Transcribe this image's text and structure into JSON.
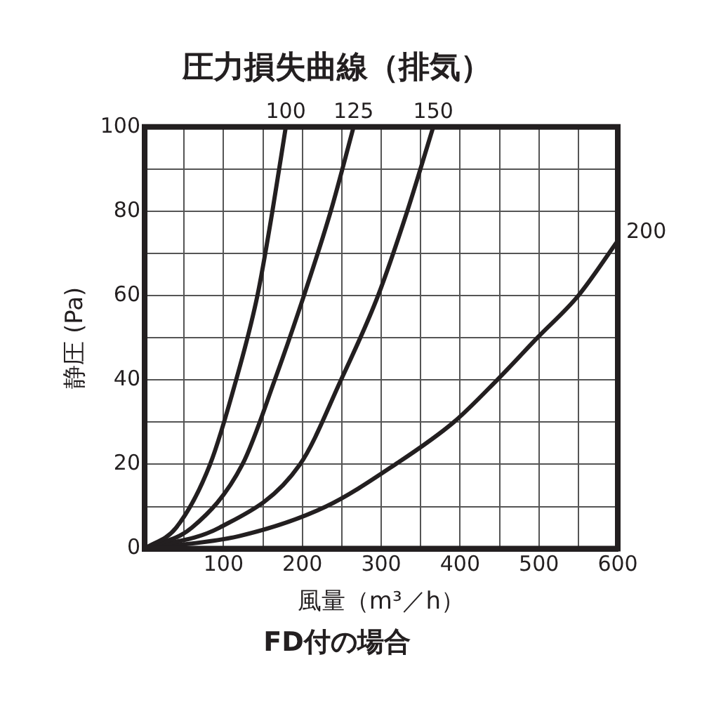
{
  "chart_data": {
    "type": "line",
    "title": "圧力損失曲線（排気）",
    "xlabel": "風量（m³／h）",
    "ylabel": "静圧 (Pa)",
    "annotations": [
      "FD付の場合"
    ],
    "xlim": [
      0,
      600
    ],
    "ylim": [
      0,
      100
    ],
    "xticks": [
      {
        "value": 0,
        "label": null
      },
      {
        "value": 50,
        "label": null
      },
      100,
      {
        "value": 150,
        "label": null
      },
      200,
      {
        "value": 250,
        "label": null
      },
      300,
      {
        "value": 350,
        "label": null
      },
      400,
      {
        "value": 450,
        "label": null
      },
      500,
      {
        "value": 550,
        "label": null
      },
      600
    ],
    "yticks": [
      0,
      {
        "value": 10,
        "label": null
      },
      20,
      {
        "value": 30,
        "label": null
      },
      40,
      {
        "value": 50,
        "label": null
      },
      60,
      {
        "value": 70,
        "label": null
      },
      80,
      {
        "value": 90,
        "label": null
      },
      100
    ],
    "grid": true,
    "legend": false,
    "marker": "none",
    "line_style": "solid",
    "series": [
      {
        "name": "100",
        "color": "#231f20",
        "x": [
          0,
          40,
          83,
          116,
          143,
          162,
          179
        ],
        "values": [
          0,
          5,
          20,
          40,
          60,
          80,
          100
        ]
      },
      {
        "name": "125",
        "color": "#231f20",
        "x": [
          0,
          60,
          124,
          165,
          202,
          236,
          265
        ],
        "values": [
          0,
          5,
          20,
          40,
          60,
          80,
          100
        ]
      },
      {
        "name": "150",
        "color": "#231f20",
        "x": [
          0,
          95,
          197,
          249,
          296,
          333,
          366
        ],
        "values": [
          0,
          5,
          20,
          40,
          60,
          80,
          100
        ]
      },
      {
        "name": "200",
        "color": "#231f20",
        "x": [
          0,
          120,
          230,
          318,
          392,
          447,
          498,
          550,
          600
        ],
        "values": [
          0,
          3,
          10,
          20,
          30,
          40,
          50,
          60,
          73
        ]
      }
    ]
  }
}
